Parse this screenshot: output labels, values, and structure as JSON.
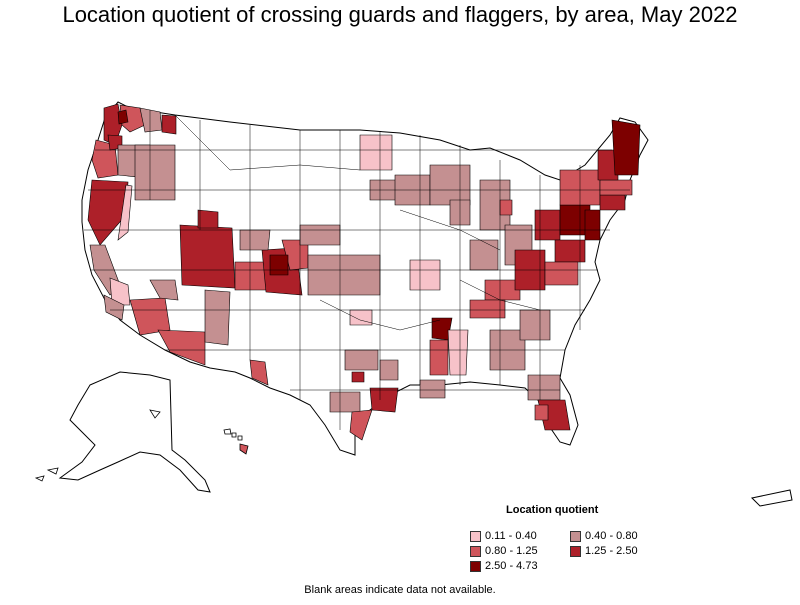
{
  "title": "Location quotient of crossing guards and flaggers, by area, May 2022",
  "legend": {
    "title": "Location quotient",
    "items": [
      {
        "label": "0.11 - 0.40",
        "color": "#f7c2c9"
      },
      {
        "label": "0.40 - 0.80",
        "color": "#c49091"
      },
      {
        "label": "0.80 - 1.25",
        "color": "#cf555b"
      },
      {
        "label": "1.25 - 2.50",
        "color": "#ad2029"
      },
      {
        "label": "2.50 - 4.73",
        "color": "#7d0000"
      }
    ]
  },
  "footnote": "Blank areas indicate data not available.",
  "colors": {
    "none": "#ffffff",
    "c1": "#f7c2c9",
    "c2": "#c49091",
    "c3": "#cf555b",
    "c4": "#ad2029",
    "c5": "#7d0000",
    "stroke": "#000000"
  }
}
